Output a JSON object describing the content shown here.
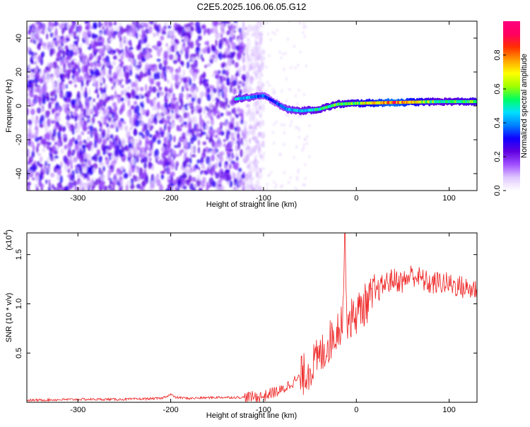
{
  "page": {
    "title": "C2E5.2025.106.06.05.G12"
  },
  "chart_data": [
    {
      "type": "heatmap",
      "xlabel": "Height of straight line (km)",
      "ylabel": "Frequency (Hz)",
      "xlim": [
        -355,
        130
      ],
      "ylim": [
        -50,
        50
      ],
      "x_ticks": [
        -300,
        -200,
        -100,
        0,
        100
      ],
      "y_ticks": [
        -40,
        -20,
        0,
        20,
        40
      ],
      "colorbar": {
        "label": "Normalized spectral amplitude",
        "ticks": [
          0.0,
          0.2,
          0.4,
          0.6,
          0.8
        ],
        "range": [
          0,
          1
        ],
        "colors": [
          "#ffffff",
          "#e0c8ff",
          "#a050ff",
          "#6000e0",
          "#1000ff",
          "#0080ff",
          "#00e0ff",
          "#00ff60",
          "#a0ff00",
          "#ffff00",
          "#ffa000",
          "#ff3000",
          "#ff0060",
          "#ff0080"
        ]
      },
      "signal_track": [
        {
          "x": -130,
          "f": 4,
          "amp": 0.45
        },
        {
          "x": -100,
          "f": 6,
          "amp": 0.35
        },
        {
          "x": -90,
          "f": 3,
          "amp": 0.3
        },
        {
          "x": -75,
          "f": -2,
          "amp": 0.4
        },
        {
          "x": -60,
          "f": -3,
          "amp": 0.45
        },
        {
          "x": -40,
          "f": -2,
          "amp": 0.5
        },
        {
          "x": -20,
          "f": 1,
          "amp": 0.55
        },
        {
          "x": 0,
          "f": 1.5,
          "amp": 0.6
        },
        {
          "x": 40,
          "f": 2,
          "amp": 0.85
        },
        {
          "x": 90,
          "f": 2.5,
          "amp": 0.5
        },
        {
          "x": 130,
          "f": 2.5,
          "amp": 0.6
        }
      ],
      "noise_region": {
        "x_from": -355,
        "x_to": -120
      }
    },
    {
      "type": "line",
      "xlabel": "Height of straight line (km)",
      "ylabel": "SNR (10 * v/v)",
      "y_multiplier_label": "(x10",
      "y_multiplier_exp": "4",
      "y_multiplier_close": ")",
      "xlim": [
        -355,
        130
      ],
      "ylim": [
        0,
        1.72
      ],
      "x_ticks": [
        -300,
        -200,
        -100,
        0,
        100
      ],
      "y_ticks": [
        0.5,
        1.0,
        1.5
      ],
      "series": [
        {
          "color": "#ee2222",
          "x": [
            -355,
            -300,
            -250,
            -210,
            -200,
            -195,
            -180,
            -150,
            -120,
            -100,
            -90,
            -80,
            -70,
            -60,
            -50,
            -40,
            -30,
            -20,
            -15,
            -12,
            -10,
            -5,
            0,
            10,
            20,
            30,
            40,
            50,
            60,
            70,
            80,
            90,
            100,
            110,
            120,
            130
          ],
          "y": [
            0.02,
            0.03,
            0.03,
            0.04,
            0.08,
            0.05,
            0.04,
            0.05,
            0.05,
            0.06,
            0.1,
            0.12,
            0.2,
            0.25,
            0.35,
            0.45,
            0.6,
            0.75,
            0.85,
            1.7,
            0.85,
            0.85,
            0.9,
            1.0,
            1.1,
            1.2,
            1.25,
            1.22,
            1.3,
            1.25,
            1.2,
            1.22,
            1.2,
            1.18,
            1.15,
            1.15
          ]
        }
      ]
    }
  ]
}
